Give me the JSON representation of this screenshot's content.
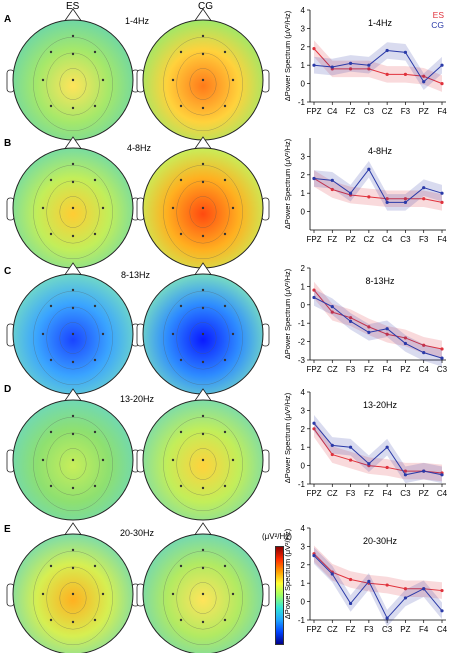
{
  "headers": {
    "es": "ES",
    "cg": "CG"
  },
  "colorbar": {
    "title": "(μV²/Hz)"
  },
  "chart_data": [
    {
      "panel": "A",
      "band": "1-4Hz",
      "type": "line",
      "ylabel": "ΔPower Spectrum (μV²/Hz)",
      "ylim": [
        -1,
        4
      ],
      "yticks": [
        -1,
        0,
        1,
        2,
        3,
        4
      ],
      "x": [
        "FPZ",
        "C4",
        "FZ",
        "C3",
        "CZ",
        "F3",
        "PZ",
        "F4"
      ],
      "show_legend": true,
      "legend": [
        "ES",
        "CG"
      ],
      "series": [
        {
          "name": "ES",
          "color": "#e0323c",
          "values": [
            1.9,
            0.8,
            0.8,
            0.8,
            0.5,
            0.5,
            0.4,
            0.0
          ]
        },
        {
          "name": "CG",
          "color": "#2a3aa8",
          "values": [
            1.0,
            0.9,
            1.1,
            1.0,
            1.8,
            1.7,
            0.1,
            1.0
          ]
        }
      ]
    },
    {
      "panel": "B",
      "band": "4-8Hz",
      "type": "line",
      "ylabel": "ΔPower Spectrum (μV²/Hz)",
      "ylim": [
        -1,
        4
      ],
      "yticks": [
        0,
        1,
        2,
        3
      ],
      "x": [
        "FPZ",
        "FZ",
        "PZ",
        "CZ",
        "C4",
        "C3",
        "F3",
        "F4"
      ],
      "series": [
        {
          "name": "ES",
          "color": "#e0323c",
          "values": [
            1.8,
            1.2,
            0.9,
            0.8,
            0.7,
            0.7,
            0.7,
            0.5
          ]
        },
        {
          "name": "CG",
          "color": "#2a3aa8",
          "values": [
            1.8,
            1.7,
            1.0,
            2.3,
            0.5,
            0.5,
            1.3,
            1.0
          ]
        }
      ]
    },
    {
      "panel": "C",
      "band": "8-13Hz",
      "type": "line",
      "ylabel": "ΔPower Spectrum (μV²/Hz)",
      "ylim": [
        -3,
        2
      ],
      "yticks": [
        -3,
        -2,
        -1,
        0,
        1,
        2
      ],
      "x": [
        "FPZ",
        "CZ",
        "F3",
        "FZ",
        "F4",
        "PZ",
        "C4",
        "C3"
      ],
      "series": [
        {
          "name": "ES",
          "color": "#e0323c",
          "values": [
            0.8,
            -0.4,
            -0.7,
            -1.2,
            -1.6,
            -1.8,
            -2.2,
            -2.4
          ]
        },
        {
          "name": "CG",
          "color": "#2a3aa8",
          "values": [
            0.4,
            -0.1,
            -0.9,
            -1.5,
            -1.3,
            -2.1,
            -2.6,
            -2.9
          ]
        }
      ]
    },
    {
      "panel": "D",
      "band": "13-20Hz",
      "type": "line",
      "ylabel": "ΔPower Spectrum (μV²/Hz)",
      "ylim": [
        -1,
        4
      ],
      "yticks": [
        -1,
        0,
        1,
        2,
        3,
        4
      ],
      "x": [
        "FPZ",
        "CZ",
        "F3",
        "FZ",
        "F4",
        "C3",
        "PZ",
        "C4"
      ],
      "series": [
        {
          "name": "ES",
          "color": "#e0323c",
          "values": [
            2.0,
            0.6,
            0.3,
            0.0,
            -0.1,
            -0.3,
            -0.3,
            -0.4
          ]
        },
        {
          "name": "CG",
          "color": "#2a3aa8",
          "values": [
            2.3,
            1.1,
            1.0,
            0.1,
            1.0,
            -0.5,
            -0.3,
            -0.5
          ]
        }
      ]
    },
    {
      "panel": "E",
      "band": "20-30Hz",
      "type": "line",
      "ylabel": "ΔPower Spectrum (μV²/Hz)",
      "ylim": [
        -1,
        4
      ],
      "yticks": [
        -1,
        0,
        1,
        2,
        3,
        4
      ],
      "x": [
        "FPZ",
        "CZ",
        "FZ",
        "F3",
        "C3",
        "PZ",
        "F4",
        "C4"
      ],
      "series": [
        {
          "name": "ES",
          "color": "#e0323c",
          "values": [
            2.6,
            1.6,
            1.2,
            1.0,
            0.9,
            0.7,
            0.7,
            0.6
          ]
        },
        {
          "name": "CG",
          "color": "#2a3aa8",
          "values": [
            2.5,
            1.5,
            -0.1,
            1.1,
            -0.9,
            0.2,
            0.7,
            -0.5
          ]
        }
      ]
    }
  ]
}
